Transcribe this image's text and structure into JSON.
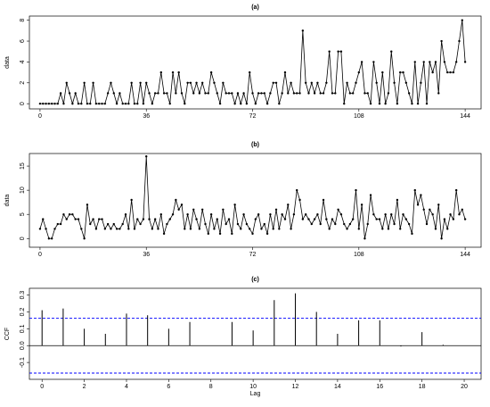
{
  "chart_data": [
    {
      "type": "line",
      "title": "(a)",
      "ylabel": "data",
      "color": "#000000",
      "xlim": [
        -3.6,
        149.4
      ],
      "xticks": [
        0,
        36,
        72,
        108,
        144
      ],
      "ylim": [
        -0.5,
        8.4
      ],
      "yticks": [
        0,
        2,
        4,
        6,
        8
      ],
      "values": [
        0,
        0,
        0,
        0,
        0,
        0,
        0,
        1,
        0,
        2,
        1,
        0,
        1,
        0,
        0,
        2,
        0,
        0,
        2,
        0,
        0,
        0,
        0,
        1,
        2,
        1,
        0,
        1,
        0,
        0,
        0,
        2,
        0,
        0,
        2,
        0,
        2,
        1,
        0,
        1,
        1,
        3,
        1,
        1,
        0,
        3,
        1,
        3,
        1,
        0,
        2,
        2,
        1,
        2,
        1,
        2,
        1,
        1,
        3,
        2,
        1,
        0,
        2,
        1,
        1,
        1,
        0,
        1,
        0,
        1,
        0,
        3,
        1,
        0,
        1,
        1,
        1,
        0,
        1,
        2,
        2,
        0,
        1,
        3,
        1,
        2,
        1,
        1,
        1,
        7,
        2,
        1,
        2,
        1,
        2,
        1,
        1,
        2,
        5,
        1,
        1,
        5,
        5,
        0,
        2,
        1,
        1,
        2,
        3,
        4,
        1,
        1,
        0,
        4,
        2,
        0,
        3,
        0,
        1,
        5,
        2,
        0,
        3,
        3,
        2,
        1,
        0,
        4,
        0,
        2,
        4,
        0,
        4,
        3,
        4,
        1,
        6,
        4,
        3,
        3,
        3,
        4,
        6,
        8,
        4
      ]
    },
    {
      "type": "line",
      "title": "(b)",
      "ylabel": "data",
      "color": "#000000",
      "xlim": [
        -3.6,
        149.4
      ],
      "xticks": [
        0,
        36,
        72,
        108,
        144
      ],
      "ylim": [
        -1.8,
        17.6
      ],
      "yticks": [
        0,
        5,
        10,
        15
      ],
      "values": [
        2,
        4,
        2,
        0,
        0,
        2,
        3,
        3,
        5,
        4,
        5,
        5,
        4,
        4,
        2,
        0,
        7,
        3,
        4,
        2,
        4,
        4,
        2,
        3,
        2,
        3,
        2,
        2,
        3,
        5,
        2,
        8,
        2,
        4,
        3,
        4,
        17,
        4,
        2,
        4,
        2,
        5,
        1,
        3,
        4,
        5,
        8,
        6,
        7,
        2,
        5,
        2,
        6,
        4,
        2,
        6,
        3,
        1,
        5,
        2,
        4,
        1,
        6,
        3,
        4,
        1,
        7,
        3,
        2,
        5,
        3,
        2,
        1,
        4,
        5,
        2,
        3,
        1,
        5,
        2,
        6,
        2,
        5,
        4,
        7,
        2,
        5,
        10,
        8,
        4,
        5,
        4,
        3,
        4,
        5,
        3,
        8,
        4,
        2,
        4,
        3,
        6,
        5,
        3,
        2,
        3,
        4,
        10,
        2,
        7,
        0,
        3,
        9,
        5,
        4,
        4,
        2,
        5,
        2,
        5,
        3,
        8,
        2,
        5,
        4,
        3,
        1,
        10,
        7,
        9,
        6,
        3,
        6,
        5,
        2,
        7,
        0,
        4,
        2,
        5,
        4,
        10,
        5,
        6,
        4
      ]
    },
    {
      "type": "spike",
      "title": "(c)",
      "ylabel": "CCF",
      "xlabel": "Lag",
      "color": "#000000",
      "ci_bound": 0.163,
      "ci_color": "#0000ff",
      "xlim": [
        -0.6,
        20.8
      ],
      "xticks": [
        0,
        2,
        4,
        6,
        8,
        10,
        12,
        14,
        16,
        18,
        20
      ],
      "ylim": [
        -0.2,
        0.34
      ],
      "yticks": [
        -0.1,
        {
          "value": 0,
          "label": "0.0"
        },
        0.1,
        0.2,
        0.3
      ],
      "x": [
        0,
        1,
        2,
        3,
        4,
        5,
        6,
        7,
        8,
        9,
        10,
        11,
        12,
        13,
        14,
        15,
        16,
        17,
        18,
        19,
        20
      ],
      "values": [
        0.21,
        0.22,
        0.1,
        0.07,
        0.19,
        0.18,
        0.1,
        0.14,
        0.0,
        0.14,
        0.09,
        0.27,
        0.31,
        0.2,
        0.07,
        0.15,
        0.15,
        -0.005,
        0.08,
        0.005,
        0
      ]
    }
  ]
}
